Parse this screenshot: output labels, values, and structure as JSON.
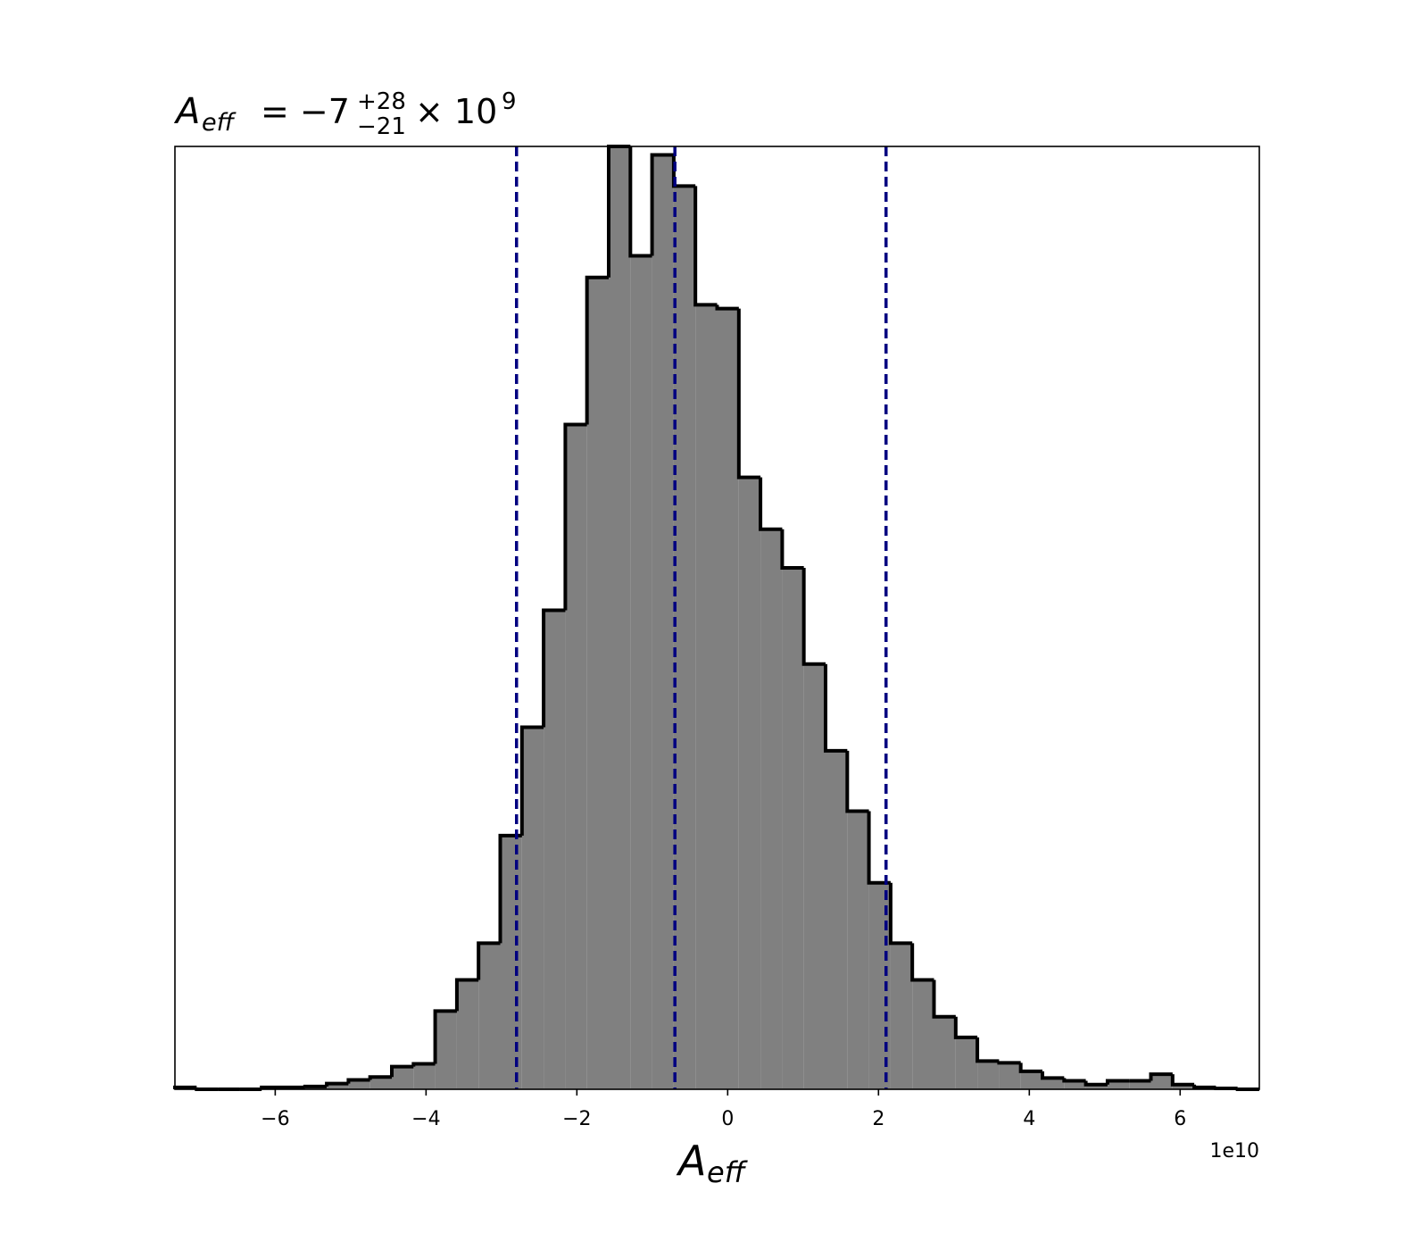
{
  "chart_data": {
    "type": "histogram",
    "title": {
      "symbol": "A",
      "subscript": "eff",
      "text": "= −7",
      "sup": "+28",
      "sub": "−21",
      "times": "× 10",
      "exponent": "9"
    },
    "xlabel": {
      "symbol": "A",
      "subscript": "eff"
    },
    "x_offset_label": "1e10",
    "bins": [
      -7.33,
      -7.042,
      -6.755,
      -6.467,
      -6.18,
      -5.892,
      -5.604,
      -5.317,
      -5.029,
      -4.742,
      -4.454,
      -4.166,
      -3.879,
      -3.591,
      -3.304,
      -3.016,
      -2.728,
      -2.441,
      -2.153,
      -1.866,
      -1.578,
      -1.29,
      -1.003,
      -0.715,
      -0.428,
      -0.14,
      0.148,
      0.435,
      0.723,
      1.01,
      1.298,
      1.586,
      1.873,
      2.161,
      2.448,
      2.736,
      3.024,
      3.311,
      3.599,
      3.886,
      4.174,
      4.462,
      4.749,
      5.037,
      5.324,
      5.612,
      5.9,
      6.187,
      6.475,
      6.762,
      7.05
    ],
    "counts": [
      0.2,
      0,
      0,
      0,
      0.2,
      0.2,
      0.3,
      0.6,
      1.0,
      1.3,
      2.4,
      2.7,
      8.3,
      11.6,
      15.5,
      26.9,
      38.4,
      50.8,
      70.5,
      86.1,
      100,
      88.4,
      99.1,
      95.8,
      83.2,
      82.8,
      64.9,
      59.4,
      55.3,
      45.1,
      35.9,
      29.5,
      21.9,
      15.5,
      11.6,
      7.7,
      5.5,
      3.0,
      2.8,
      1.9,
      1.2,
      0.9,
      0.5,
      0.9,
      0.9,
      1.6,
      0.5,
      0.2,
      0.1,
      0
    ],
    "color": "#808080",
    "edgecolor": "#000000",
    "vlines": [
      -2.8,
      -0.7,
      2.1
    ],
    "vline_color": "#000080",
    "xlim": [
      -7.33,
      7.05
    ],
    "xticks": [
      {
        "value": -6,
        "label": "−6"
      },
      {
        "value": -4,
        "label": "−4"
      },
      {
        "value": -2,
        "label": "−2"
      },
      0,
      2,
      4,
      6
    ],
    "ylim": [
      0,
      100
    ],
    "grid": false
  }
}
